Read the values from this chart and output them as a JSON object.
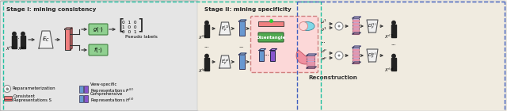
{
  "fig_width": 6.4,
  "fig_height": 1.4,
  "dpi": 100,
  "bg_color": "#f5f0e8",
  "stage1_bg": "#e5e5e5",
  "stage2_bg": "#f0ebe0",
  "stage1_title": "Stage I: mining consistency",
  "stage2_title": "Stage II: mining specificity",
  "recon_label": "Reconstruction",
  "pseudo_label": "Pseudo labels",
  "green_box_color": "#90d090",
  "pink_fill": "#f08080",
  "purple_fill": "#9060c0",
  "light_blue_fill": "#70a8d8",
  "teal_dash": "#20c0a0",
  "blue_dash": "#4060c0"
}
